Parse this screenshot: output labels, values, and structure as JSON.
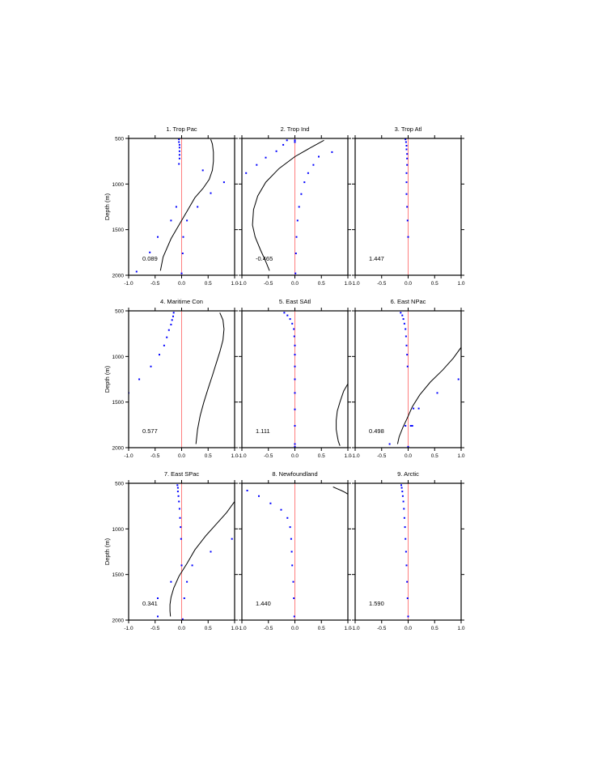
{
  "colors": {
    "curve": "#000000",
    "points": "#0000ff",
    "zero_line": "#ff8080"
  },
  "chart_data": [
    {
      "type": "line",
      "title": "1. Trop Pac",
      "annotation": "0.089",
      "ylabel": "Depth (m)",
      "xlim": [
        -1,
        1
      ],
      "ylim": [
        2000,
        500
      ],
      "xticks": [
        "-1.0",
        "-0.5",
        "0.0",
        "0.5",
        "1.0"
      ],
      "yticks": [
        "500",
        "1000",
        "1500",
        "2000"
      ],
      "curve": {
        "x": [
          0.55,
          0.58,
          0.6,
          0.6,
          0.58,
          0.52,
          0.4,
          0.25,
          0.1,
          -0.05,
          -0.2,
          -0.35,
          -0.4
        ],
        "y": [
          510,
          560,
          650,
          750,
          850,
          950,
          1050,
          1150,
          1300,
          1450,
          1600,
          1800,
          1950
        ]
      },
      "points": {
        "x": [
          -0.05,
          -0.05,
          -0.04,
          -0.04,
          -0.04,
          -0.04,
          -0.04,
          -0.05,
          0.4,
          0.8,
          0.55,
          0.3,
          -0.1,
          0.1,
          -0.2,
          -0.45,
          0.03,
          -0.6,
          0.02,
          -0.85,
          0.0
        ],
        "y": [
          510,
          540,
          570,
          600,
          640,
          680,
          720,
          780,
          850,
          980,
          1100,
          1250,
          1250,
          1400,
          1400,
          1580,
          1580,
          1750,
          1760,
          1960,
          1980
        ]
      }
    },
    {
      "type": "line",
      "title": "2. Trop Ind",
      "annotation": "-0.465",
      "ylabel": "",
      "xlim": [
        -1,
        1
      ],
      "ylim": [
        2000,
        500
      ],
      "xticks": [
        "-1.0",
        "-0.5",
        "0.0",
        "0.5",
        "1.0"
      ],
      "yticks": [
        "500",
        "1000",
        "1500",
        "2000"
      ],
      "curve": {
        "x": [
          0.55,
          0.3,
          0.0,
          -0.3,
          -0.55,
          -0.7,
          -0.78,
          -0.8,
          -0.75,
          -0.65,
          -0.55,
          -0.48
        ],
        "y": [
          520,
          600,
          700,
          830,
          980,
          1130,
          1280,
          1450,
          1580,
          1720,
          1850,
          1950
        ]
      },
      "points": {
        "x": [
          -0.15,
          0.7,
          -0.22,
          0.45,
          -0.35,
          0.35,
          -0.55,
          0.25,
          -0.72,
          0.18,
          -0.92,
          0.12,
          0.08,
          0.05,
          0.03,
          0.02,
          0.01,
          0.0,
          0.0
        ],
        "y": [
          520,
          650,
          570,
          700,
          640,
          790,
          710,
          880,
          790,
          980,
          880,
          1110,
          1250,
          1400,
          1580,
          1760,
          1980,
          520,
          540
        ]
      }
    },
    {
      "type": "line",
      "title": "3. Trop Atl",
      "annotation": "1.447",
      "ylabel": "",
      "xlim": [
        -1,
        1
      ],
      "ylim": [
        2000,
        500
      ],
      "xticks": [
        "-1.0",
        "-0.5",
        "0.0",
        "0.5",
        "1.0"
      ],
      "yticks": [
        "500",
        "1000",
        "1500",
        "2000"
      ],
      "curve": {
        "x": [],
        "y": []
      },
      "points": {
        "x": [
          -0.05,
          -0.04,
          -0.03,
          -0.03,
          -0.02,
          -0.02,
          -0.02,
          -0.03,
          -0.03,
          -0.03,
          -0.02,
          -0.01,
          0.0
        ],
        "y": [
          510,
          540,
          580,
          620,
          670,
          720,
          790,
          880,
          980,
          1110,
          1250,
          1400,
          1580
        ]
      }
    },
    {
      "type": "line",
      "title": "4. Maritime Con",
      "annotation": "0.577",
      "ylabel": "Depth (m)",
      "xlim": [
        -1,
        1
      ],
      "ylim": [
        2000,
        500
      ],
      "xticks": [
        "-1.0",
        "-0.5",
        "0.0",
        "0.5",
        "1.0"
      ],
      "yticks": [
        "500",
        "1000",
        "1500",
        "2000"
      ],
      "curve": {
        "x": [
          0.72,
          0.78,
          0.8,
          0.78,
          0.72,
          0.65,
          0.58,
          0.5,
          0.42,
          0.35,
          0.3,
          0.27
        ],
        "y": [
          520,
          600,
          700,
          820,
          950,
          1080,
          1210,
          1350,
          1500,
          1650,
          1800,
          1960
        ]
      },
      "points": {
        "x": [
          -0.15,
          -0.16,
          -0.18,
          -0.2,
          -0.24,
          -0.28,
          -0.33,
          -0.42,
          -0.58,
          -0.8,
          -1.0
        ],
        "y": [
          520,
          560,
          600,
          650,
          710,
          790,
          880,
          980,
          1110,
          1250,
          1400
        ]
      }
    },
    {
      "type": "line",
      "title": "5. East SAtl",
      "annotation": "1.111",
      "ylabel": "",
      "xlim": [
        -1,
        1
      ],
      "ylim": [
        2000,
        500
      ],
      "xticks": [
        "-1.0",
        "-0.5",
        "0.0",
        "0.5",
        "1.0"
      ],
      "yticks": [
        "500",
        "1000",
        "1500",
        "2000"
      ],
      "curve": {
        "x": [
          1.0,
          0.92,
          0.85,
          0.8,
          0.78,
          0.78,
          0.8,
          0.82,
          0.85
        ],
        "y": [
          1300,
          1380,
          1500,
          1600,
          1700,
          1800,
          1870,
          1930,
          1980
        ]
      },
      "points": {
        "x": [
          -0.2,
          -0.14,
          -0.09,
          -0.05,
          -0.02,
          -0.01,
          0.0,
          0.0,
          0.0,
          0.0,
          0.0,
          0.0,
          0.0,
          0.0,
          0.0
        ],
        "y": [
          520,
          550,
          590,
          640,
          700,
          780,
          880,
          980,
          1110,
          1250,
          1400,
          1580,
          1760,
          1960,
          1990
        ]
      }
    },
    {
      "type": "line",
      "title": "6. East NPac",
      "annotation": "0.498",
      "ylabel": "",
      "xlim": [
        -1,
        1
      ],
      "ylim": [
        2000,
        500
      ],
      "xticks": [
        "-1.0",
        "-0.5",
        "0.0",
        "0.5",
        "1.0"
      ],
      "yticks": [
        "500",
        "1000",
        "1500",
        "2000"
      ],
      "curve": {
        "x": [
          1.0,
          0.85,
          0.65,
          0.42,
          0.22,
          0.08,
          -0.02,
          -0.1,
          -0.17,
          -0.2
        ],
        "y": [
          900,
          1020,
          1150,
          1280,
          1420,
          1550,
          1680,
          1780,
          1880,
          1960
        ]
      },
      "points": {
        "x": [
          -0.14,
          -0.11,
          -0.09,
          -0.07,
          -0.05,
          -0.04,
          -0.03,
          -0.02,
          -0.01,
          0.95,
          0.55,
          0.2,
          0.1,
          0.05,
          -0.05,
          0.08,
          -0.35,
          0.0
        ],
        "y": [
          520,
          550,
          590,
          640,
          700,
          780,
          880,
          980,
          1110,
          1250,
          1400,
          1570,
          1570,
          1760,
          1760,
          1760,
          1960,
          1990
        ]
      }
    },
    {
      "type": "line",
      "title": "7. East SPac",
      "annotation": "0.341",
      "ylabel": "Depth (m)",
      "xlim": [
        -1,
        1
      ],
      "ylim": [
        2000,
        500
      ],
      "xticks": [
        "-1.0",
        "-0.5",
        "0.0",
        "0.5",
        "1.0"
      ],
      "yticks": [
        "500",
        "1000",
        "1500",
        "2000"
      ],
      "curve": {
        "x": [
          1.0,
          0.85,
          0.65,
          0.45,
          0.25,
          0.1,
          -0.05,
          -0.15,
          -0.2,
          -0.22,
          -0.22,
          -0.21
        ],
        "y": [
          700,
          820,
          950,
          1080,
          1230,
          1380,
          1520,
          1650,
          1750,
          1830,
          1900,
          1960
        ]
      },
      "points": {
        "x": [
          -0.08,
          -0.07,
          -0.07,
          -0.06,
          -0.05,
          -0.04,
          -0.03,
          -0.02,
          -0.01,
          0.95,
          0.55,
          0.2,
          0.0,
          0.1,
          -0.2,
          -0.45,
          0.05,
          -0.45,
          0.02
        ],
        "y": [
          520,
          550,
          590,
          640,
          700,
          780,
          880,
          980,
          1110,
          1110,
          1250,
          1400,
          1400,
          1580,
          1580,
          1760,
          1760,
          1960,
          1990
        ]
      }
    },
    {
      "type": "line",
      "title": "8. Newfoundland",
      "annotation": "1.440",
      "ylabel": "",
      "xlim": [
        -1,
        1
      ],
      "ylim": [
        2000,
        500
      ],
      "xticks": [
        "-1.0",
        "-0.5",
        "0.0",
        "0.5",
        "1.0"
      ],
      "yticks": [
        "500",
        "1000",
        "1500",
        "2000"
      ],
      "curve": {
        "x": [
          0.72,
          0.8,
          0.88,
          0.95,
          1.0
        ],
        "y": [
          540,
          560,
          580,
          600,
          620
        ]
      },
      "points": {
        "x": [
          -0.9,
          -0.68,
          -0.46,
          -0.26,
          -0.14,
          -0.09,
          -0.07,
          -0.06,
          -0.05,
          -0.03,
          -0.02,
          -0.01
        ],
        "y": [
          580,
          640,
          720,
          790,
          880,
          980,
          1110,
          1250,
          1400,
          1580,
          1760,
          1960
        ]
      }
    },
    {
      "type": "line",
      "title": "9. Arctic",
      "annotation": "1.590",
      "ylabel": "",
      "xlim": [
        -1,
        1
      ],
      "ylim": [
        2000,
        500
      ],
      "xticks": [
        "-1.0",
        "-0.5",
        "0.0",
        "0.5",
        "1.0"
      ],
      "yticks": [
        "500",
        "1000",
        "1500",
        "2000"
      ],
      "curve": {
        "x": [],
        "y": []
      },
      "points": {
        "x": [
          -0.13,
          -0.12,
          -0.11,
          -0.1,
          -0.09,
          -0.08,
          -0.07,
          -0.06,
          -0.05,
          -0.04,
          -0.03,
          -0.02,
          -0.01,
          0.0
        ],
        "y": [
          520,
          550,
          590,
          640,
          700,
          780,
          880,
          980,
          1110,
          1250,
          1400,
          1580,
          1760,
          1960
        ]
      }
    }
  ]
}
